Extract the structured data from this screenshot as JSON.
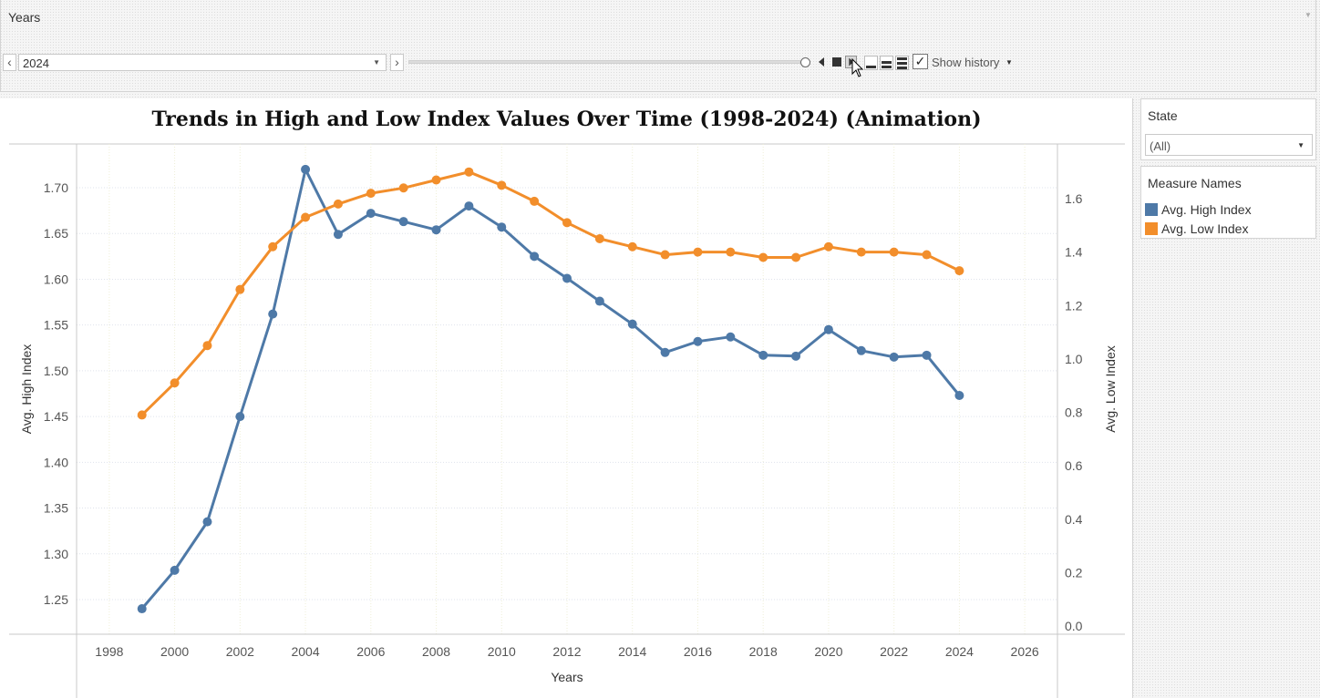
{
  "pages_shelf": {
    "title": "Years",
    "selected_year": "2024",
    "show_history_label": "Show history",
    "show_history_checked": true,
    "icons": [
      "chevron-left-icon",
      "chevron-right-icon",
      "dropdown-caret-icon",
      "play-backward-icon",
      "stop-icon",
      "play-forward-icon",
      "speed-slow-icon",
      "speed-medium-icon",
      "speed-fast-icon",
      "checkbox-icon",
      "cursor-icon"
    ]
  },
  "filter": {
    "title": "State",
    "selected": "(All)"
  },
  "legend": {
    "title": "Measure Names",
    "items": [
      {
        "label": "Avg. High Index",
        "color": "#4e79a7"
      },
      {
        "label": "Avg. Low Index",
        "color": "#f28e2b"
      }
    ]
  },
  "chart_data": {
    "type": "line",
    "title": "Trends in High and Low Index Values Over Time (1998-2024) (Animation)",
    "xlabel": "Years",
    "ylabel_left": "Avg. High Index",
    "ylabel_right": "Avg. Low Index",
    "xlim": [
      1997,
      2027
    ],
    "x_ticks": [
      1998,
      2000,
      2002,
      2004,
      2006,
      2008,
      2010,
      2012,
      2014,
      2016,
      2018,
      2020,
      2022,
      2024,
      2026
    ],
    "y_left_ticks": [
      1.25,
      1.3,
      1.35,
      1.4,
      1.45,
      1.5,
      1.55,
      1.6,
      1.65,
      1.7
    ],
    "y_left_tick_labels": [
      "1.25",
      "1.30",
      "1.35",
      "1.40",
      "1.45",
      "1.50",
      "1.55",
      "1.60",
      "1.65",
      "1.70"
    ],
    "y_right_ticks": [
      0.0,
      0.2,
      0.4,
      0.6,
      0.8,
      1.0,
      1.2,
      1.4,
      1.6
    ],
    "y_right_tick_labels": [
      "0.0",
      "0.2",
      "0.4",
      "0.6",
      "0.8",
      "1.0",
      "1.2",
      "1.4",
      "1.6"
    ],
    "grid": true,
    "x": [
      1999,
      2000,
      2001,
      2002,
      2003,
      2004,
      2005,
      2006,
      2007,
      2008,
      2009,
      2010,
      2011,
      2012,
      2013,
      2014,
      2015,
      2016,
      2017,
      2018,
      2019,
      2020,
      2021,
      2022,
      2023,
      2024
    ],
    "series": [
      {
        "name": "Avg. High Index",
        "axis": "left",
        "color": "#4e79a7",
        "values": [
          1.24,
          1.282,
          1.335,
          1.45,
          1.562,
          1.72,
          1.649,
          1.672,
          1.663,
          1.654,
          1.68,
          1.657,
          1.625,
          1.601,
          1.576,
          1.551,
          1.52,
          1.532,
          1.537,
          1.517,
          1.516,
          1.545,
          1.522,
          1.515,
          1.517,
          1.473
        ]
      },
      {
        "name": "Avg. Low Index",
        "axis": "right",
        "color": "#f28e2b",
        "values": [
          0.79,
          0.91,
          1.05,
          1.26,
          1.42,
          1.53,
          1.58,
          1.62,
          1.64,
          1.67,
          1.7,
          1.65,
          1.59,
          1.51,
          1.45,
          1.42,
          1.39,
          1.4,
          1.4,
          1.38,
          1.38,
          1.42,
          1.4,
          1.4,
          1.39,
          1.33
        ]
      }
    ]
  }
}
